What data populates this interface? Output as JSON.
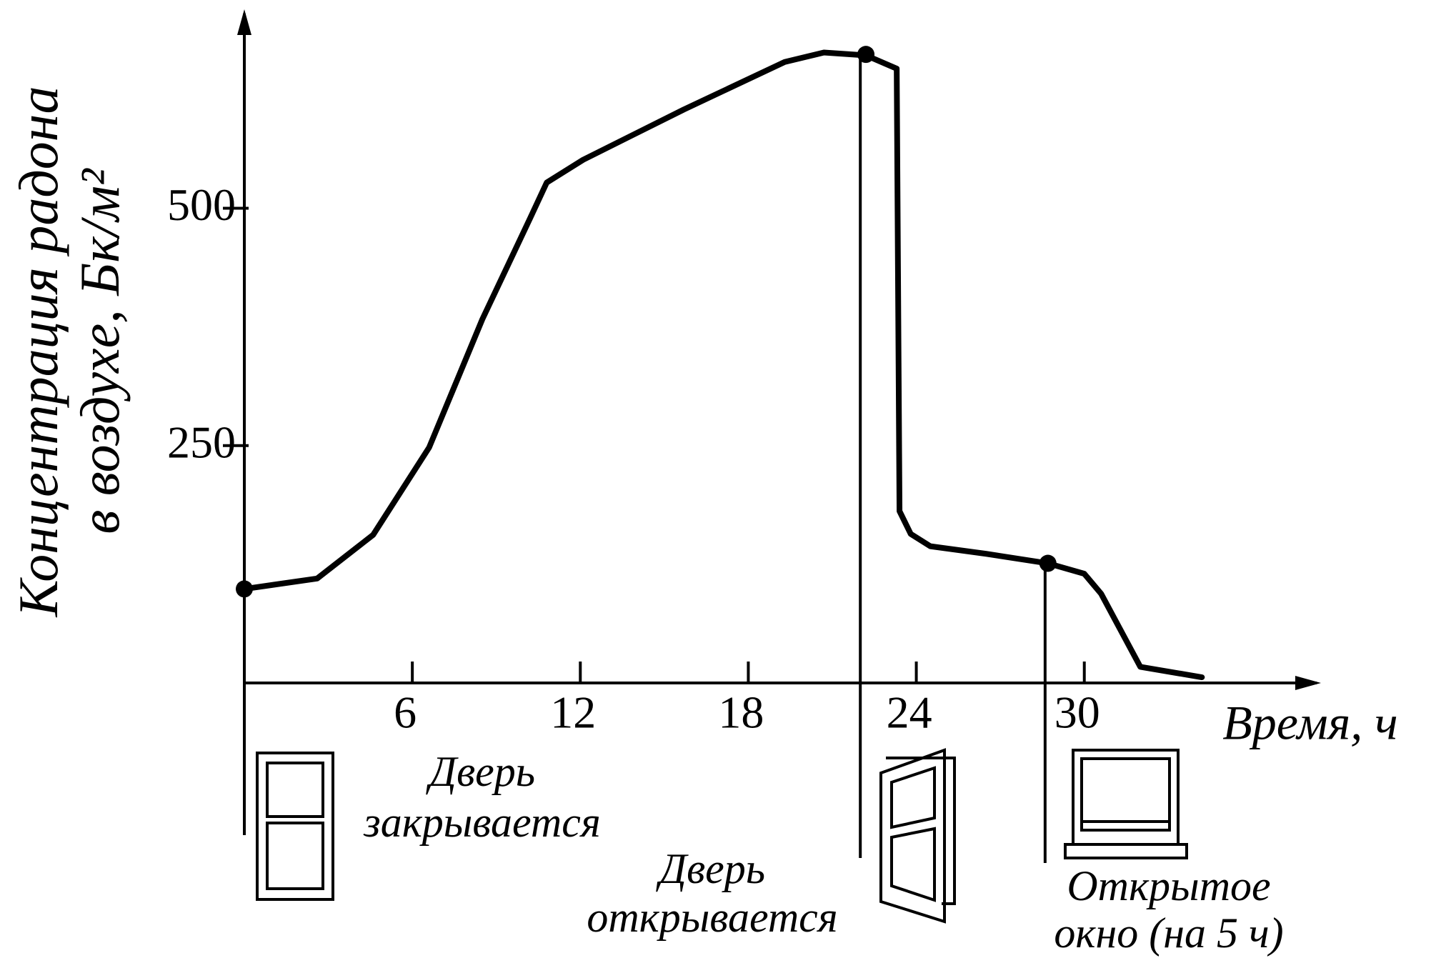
{
  "chart_data": {
    "type": "line",
    "y_label": [
      "Концентрация радона",
      "в воздухе, Бк/м²"
    ],
    "x_label": "Время, ч",
    "x": [
      0,
      2.6,
      4.6,
      6.6,
      8.5,
      10.2,
      10.8,
      12.1,
      15.7,
      19.3,
      20.7,
      22.2,
      23.3,
      23.4,
      23.8,
      24.5,
      26.5,
      28.7,
      30,
      30.6,
      32,
      34.2
    ],
    "series": [
      {
        "color": "#000000",
        "values": [
          99,
          110,
          156,
          248,
          383,
          489,
          527,
          551,
          604,
          654,
          664,
          661,
          647,
          181,
          157,
          144,
          136,
          126,
          115,
          94,
          17,
          6
        ]
      }
    ],
    "points": {
      "x": [
        0,
        22.2,
        28.7
      ],
      "y": [
        99,
        662,
        126
      ]
    },
    "events": [
      {
        "x": 0,
        "label": [
          "Дверь",
          "закрывается"
        ]
      },
      {
        "x": 22,
        "label": [
          "Дверь",
          "открывается"
        ]
      },
      {
        "x": 28.6,
        "label": [
          "Открытое",
          "окно (на 5 ч)"
        ]
      }
    ],
    "xlim": [
      0,
      38.3
    ],
    "ylim": [
      0,
      705
    ],
    "xticks": [
      6,
      12,
      18,
      24,
      30
    ],
    "yticks": [
      250,
      500
    ]
  }
}
